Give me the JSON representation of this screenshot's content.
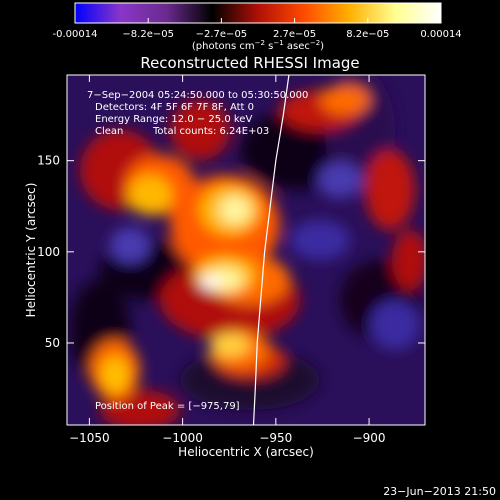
{
  "colorbar": {
    "ticks": [
      "-0.00014",
      "−8.2e−05",
      "−2.7e−05",
      "2.7e−05",
      "8.2e−05",
      "0.00014"
    ],
    "units_prefix": "(photons cm",
    "units_exp1": "−2",
    "units_mid": " s",
    "units_exp2": "−1",
    "units_suffix": " asec",
    "units_exp3": "−2",
    "units_end": ")",
    "colors": [
      "#0000ff",
      "#8a36c8",
      "#6a2a8e",
      "#000000",
      "#b01008",
      "#ff4a00",
      "#ffb000",
      "#ffff90",
      "#ffffff"
    ]
  },
  "title": "Reconstructed RHESSI Image",
  "annotations": {
    "time_range": "7−Sep−2004 05:24:50.000 to 05:30:50.000",
    "detectors": "Detectors: 4F 5F 6F 7F 8F, Att 0",
    "energy": "Energy Range: 12.0 − 25.0 keV",
    "clean": "Clean",
    "total_counts": "Total counts: 6.24E+03",
    "peak": "Position of Peak = [−975,79]"
  },
  "footer_timestamp": "23−Jun−2013 21:50",
  "chart_data": {
    "type": "heatmap",
    "title": "Reconstructed RHESSI Image",
    "xlabel": "Heliocentric X (arcsec)",
    "ylabel": "Heliocentric Y (arcsec)",
    "xlim": [
      -1062,
      -870
    ],
    "ylim": [
      5,
      197
    ],
    "xticks": [
      -1050,
      -1000,
      -950,
      -900
    ],
    "xtick_labels": [
      "−1050",
      "−1000",
      "−950",
      "−900"
    ],
    "yticks": [
      50,
      100,
      150
    ],
    "ytick_labels": [
      "50",
      "100",
      "150"
    ],
    "value_range": [
      -0.00014,
      0.00014
    ],
    "peak_position": [
      -975,
      79
    ],
    "limb_curve": [
      [
        -943,
        197
      ],
      [
        -946,
        175
      ],
      [
        -950,
        150
      ],
      [
        -953,
        125
      ],
      [
        -956,
        100
      ],
      [
        -958,
        75
      ],
      [
        -960,
        50
      ],
      [
        -961,
        25
      ],
      [
        -962,
        5
      ]
    ]
  }
}
